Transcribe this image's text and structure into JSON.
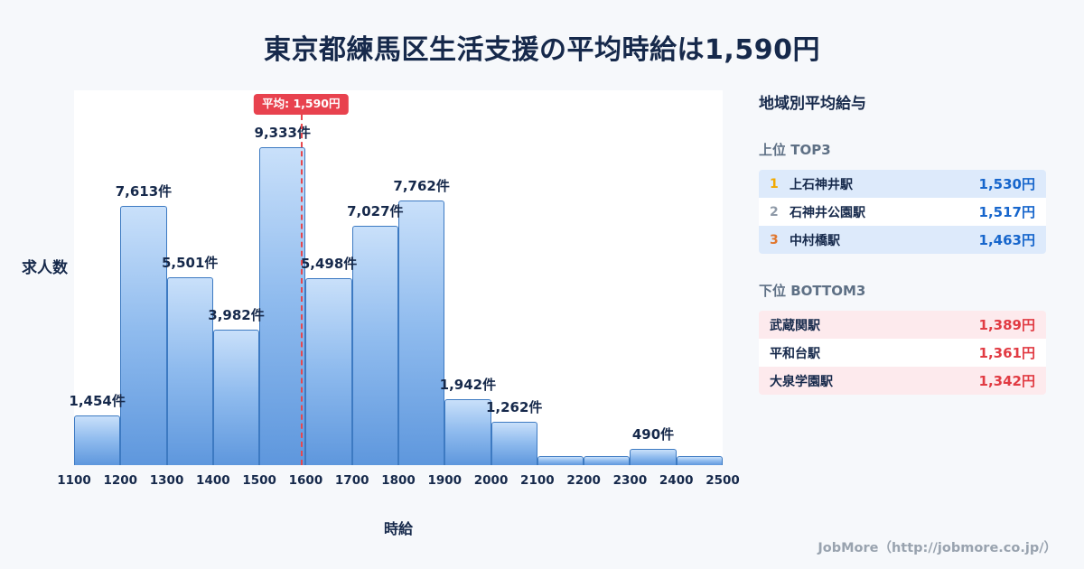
{
  "page": {
    "title": "東京都練馬区生活支援の平均時給は1,590円",
    "footer": "JobMore（http://jobmore.co.jp/）"
  },
  "chart_data": {
    "type": "bar",
    "title": "東京都練馬区生活支援の平均時給は1,590円",
    "xlabel": "時給",
    "ylabel": "求人数",
    "x_ticks": [
      1100,
      1200,
      1300,
      1400,
      1500,
      1600,
      1700,
      1800,
      1900,
      2000,
      2100,
      2200,
      2300,
      2400,
      2500
    ],
    "bin_width": 100,
    "values": [
      1454,
      7613,
      5501,
      3982,
      9333,
      5498,
      7027,
      7762,
      1942,
      1262,
      260,
      260,
      490,
      260
    ],
    "labels": [
      "1,454件",
      "7,613件",
      "5,501件",
      "3,982件",
      "9,333件",
      "5,498件",
      "7,027件",
      "7,762件",
      "1,942件",
      "1,262件",
      "",
      "",
      "490件",
      ""
    ],
    "ylim": [
      0,
      11000
    ],
    "grid": false,
    "bar_color": "#5e97dd",
    "bar_border_color": "#3d7ac2",
    "average": {
      "value": 1590,
      "label": "平均: 1,590円",
      "color": "#e8474d"
    }
  },
  "sidebar": {
    "heading": "地域別平均給与",
    "top": {
      "heading": "上位 TOP3",
      "value_color": "#1766cc",
      "rows": [
        {
          "rank": "1",
          "name": "上石神井駅",
          "value": "1,530円"
        },
        {
          "rank": "2",
          "name": "石神井公園駅",
          "value": "1,517円"
        },
        {
          "rank": "3",
          "name": "中村橋駅",
          "value": "1,463円"
        }
      ]
    },
    "bottom": {
      "heading": "下位 BOTTOM3",
      "value_color": "#e13b43",
      "rows": [
        {
          "name": "武蔵関駅",
          "value": "1,389円"
        },
        {
          "name": "平和台駅",
          "value": "1,361円"
        },
        {
          "name": "大泉学園駅",
          "value": "1,342円"
        }
      ]
    }
  }
}
